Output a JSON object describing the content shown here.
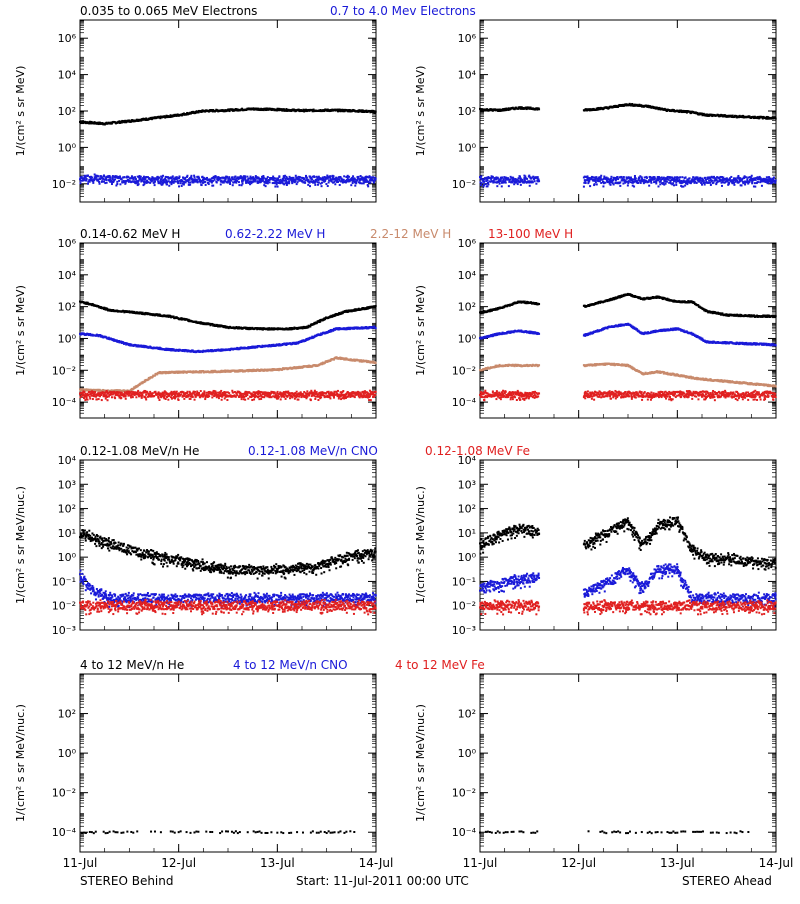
{
  "colors": {
    "black": "#000000",
    "blue": "#1a1ad8",
    "tan": "#c88a6c",
    "red": "#e02020"
  },
  "x_ticks": [
    "11-Jul",
    "12-Jul",
    "13-Jul",
    "14-Jul"
  ],
  "footer": {
    "left": "STEREO Behind",
    "center": "Start: 11-Jul-2011 00:00 UTC",
    "right": "STEREO Ahead"
  },
  "chart_data": [
    {
      "id": "electrons",
      "type": "scatter",
      "scale": "log",
      "ylabel": "1/(cm² s sr MeV)",
      "ylim_exp": [
        -3,
        7
      ],
      "tick_exps": [
        -2,
        0,
        2,
        4,
        6
      ],
      "tick_labels": [
        "10⁻²",
        "10⁰",
        "10²",
        "10⁴",
        "10⁶"
      ],
      "legend": [
        {
          "text": "0.035 to 0.065 MeV Electrons",
          "color": "black"
        },
        {
          "text": "0.7 to 4.0 Mev Electrons",
          "color": "blue"
        }
      ],
      "behind": [
        {
          "name": "0.035 to 0.065 MeV Electrons",
          "color": "black",
          "points": [
            [
              0.0,
              25
            ],
            [
              0.25,
              20
            ],
            [
              0.5,
              28
            ],
            [
              0.75,
              40
            ],
            [
              1.0,
              60
            ],
            [
              1.25,
              100
            ],
            [
              1.5,
              110
            ],
            [
              1.75,
              130
            ],
            [
              2.0,
              120
            ],
            [
              2.25,
              105
            ],
            [
              2.5,
              110
            ],
            [
              2.75,
              105
            ],
            [
              3.0,
              90
            ]
          ]
        },
        {
          "name": "0.7 to 4.0 Mev Electrons",
          "color": "blue",
          "noise": true,
          "points": [
            [
              0.0,
              0.02
            ],
            [
              0.5,
              0.017
            ],
            [
              1.0,
              0.016
            ],
            [
              1.5,
              0.017
            ],
            [
              2.0,
              0.016
            ],
            [
              2.5,
              0.017
            ],
            [
              3.0,
              0.016
            ]
          ]
        }
      ],
      "ahead": [
        {
          "name": "0.035 to 0.065 MeV Electrons",
          "color": "black",
          "points": [
            [
              0.0,
              120
            ],
            [
              0.2,
              110
            ],
            [
              0.4,
              150
            ],
            [
              0.6,
              130
            ],
            [
              0.7,
              null
            ],
            [
              1.0,
              null
            ],
            [
              1.05,
              110
            ],
            [
              1.3,
              150
            ],
            [
              1.5,
              230
            ],
            [
              1.7,
              180
            ],
            [
              1.9,
              110
            ],
            [
              2.1,
              90
            ],
            [
              2.3,
              60
            ],
            [
              2.6,
              50
            ],
            [
              3.0,
              40
            ]
          ]
        },
        {
          "name": "0.7 to 4.0 Mev Electrons",
          "color": "blue",
          "noise": true,
          "points": [
            [
              0.0,
              0.016
            ],
            [
              0.6,
              0.017
            ],
            [
              0.7,
              null
            ],
            [
              1.0,
              null
            ],
            [
              1.05,
              0.016
            ],
            [
              2.0,
              0.016
            ],
            [
              3.0,
              0.016
            ]
          ]
        }
      ]
    },
    {
      "id": "protons",
      "type": "scatter",
      "scale": "log",
      "ylabel": "1/(cm² s sr MeV)",
      "ylim_exp": [
        -5,
        6
      ],
      "tick_exps": [
        -4,
        -2,
        0,
        2,
        4,
        6
      ],
      "tick_labels": [
        "10⁻⁴",
        "10⁻²",
        "10⁰",
        "10²",
        "10⁴",
        "10⁶"
      ],
      "legend": [
        {
          "text": "0.14-0.62 MeV H",
          "color": "black"
        },
        {
          "text": "0.62-2.22 MeV H",
          "color": "blue"
        },
        {
          "text": "2.2-12 MeV H",
          "color": "tan"
        },
        {
          "text": "13-100 MeV H",
          "color": "red"
        }
      ],
      "behind": [
        {
          "name": "0.14-0.62 MeV H",
          "color": "black",
          "points": [
            [
              0.0,
              200
            ],
            [
              0.1,
              150
            ],
            [
              0.3,
              60
            ],
            [
              0.6,
              40
            ],
            [
              0.9,
              25
            ],
            [
              1.2,
              10
            ],
            [
              1.5,
              5
            ],
            [
              1.8,
              4
            ],
            [
              2.1,
              4
            ],
            [
              2.3,
              5
            ],
            [
              2.5,
              20
            ],
            [
              2.7,
              50
            ],
            [
              3.0,
              100
            ]
          ]
        },
        {
          "name": "0.62-2.22 MeV H",
          "color": "blue",
          "points": [
            [
              0.0,
              2
            ],
            [
              0.2,
              1.5
            ],
            [
              0.5,
              0.4
            ],
            [
              0.9,
              0.2
            ],
            [
              1.2,
              0.15
            ],
            [
              1.5,
              0.2
            ],
            [
              1.8,
              0.3
            ],
            [
              2.2,
              0.5
            ],
            [
              2.4,
              1.5
            ],
            [
              2.6,
              4
            ],
            [
              3.0,
              5
            ]
          ]
        },
        {
          "name": "2.2-12 MeV H",
          "color": "tan",
          "points": [
            [
              0.0,
              0.0006
            ],
            [
              0.3,
              0.0005
            ],
            [
              0.5,
              0.0005
            ],
            [
              0.65,
              0.002
            ],
            [
              0.8,
              0.007
            ],
            [
              1.2,
              0.008
            ],
            [
              1.6,
              0.009
            ],
            [
              2.0,
              0.011
            ],
            [
              2.4,
              0.02
            ],
            [
              2.6,
              0.06
            ],
            [
              3.0,
              0.03
            ]
          ]
        },
        {
          "name": "13-100 MeV H",
          "color": "red",
          "noise": true,
          "points": [
            [
              0.0,
              0.0003
            ],
            [
              1.5,
              0.0003
            ],
            [
              3.0,
              0.0003
            ]
          ]
        }
      ],
      "ahead": [
        {
          "name": "0.14-0.62 MeV H",
          "color": "black",
          "points": [
            [
              0.0,
              40
            ],
            [
              0.2,
              80
            ],
            [
              0.4,
              200
            ],
            [
              0.6,
              150
            ],
            [
              0.7,
              null
            ],
            [
              1.0,
              null
            ],
            [
              1.05,
              100
            ],
            [
              1.3,
              250
            ],
            [
              1.5,
              600
            ],
            [
              1.65,
              300
            ],
            [
              1.8,
              400
            ],
            [
              2.0,
              200
            ],
            [
              2.15,
              200
            ],
            [
              2.3,
              50
            ],
            [
              2.5,
              30
            ],
            [
              2.8,
              25
            ],
            [
              3.0,
              25
            ]
          ]
        },
        {
          "name": "0.62-2.22 MeV H",
          "color": "blue",
          "points": [
            [
              0.0,
              1
            ],
            [
              0.2,
              2
            ],
            [
              0.4,
              3
            ],
            [
              0.6,
              2
            ],
            [
              0.7,
              null
            ],
            [
              1.0,
              null
            ],
            [
              1.05,
              1.5
            ],
            [
              1.3,
              5
            ],
            [
              1.5,
              8
            ],
            [
              1.65,
              2
            ],
            [
              1.8,
              3
            ],
            [
              2.0,
              4
            ],
            [
              2.15,
              2
            ],
            [
              2.3,
              0.6
            ],
            [
              2.6,
              0.5
            ],
            [
              3.0,
              0.4
            ]
          ]
        },
        {
          "name": "2.2-12 MeV H",
          "color": "tan",
          "points": [
            [
              0.0,
              0.01
            ],
            [
              0.2,
              0.02
            ],
            [
              0.4,
              0.02
            ],
            [
              0.6,
              0.02
            ],
            [
              0.7,
              null
            ],
            [
              1.0,
              null
            ],
            [
              1.05,
              0.02
            ],
            [
              1.3,
              0.025
            ],
            [
              1.5,
              0.02
            ],
            [
              1.65,
              0.006
            ],
            [
              1.8,
              0.008
            ],
            [
              2.0,
              0.005
            ],
            [
              2.2,
              0.003
            ],
            [
              2.5,
              0.002
            ],
            [
              3.0,
              0.001
            ]
          ]
        },
        {
          "name": "13-100 MeV H",
          "color": "red",
          "noise": true,
          "points": [
            [
              0.0,
              0.0003
            ],
            [
              0.6,
              0.0003
            ],
            [
              0.7,
              null
            ],
            [
              1.0,
              null
            ],
            [
              1.05,
              0.0003
            ],
            [
              3.0,
              0.0003
            ]
          ]
        }
      ]
    },
    {
      "id": "low-energy-ions",
      "type": "scatter",
      "scale": "log",
      "ylabel": "1/(cm² s sr MeV/nuc.)",
      "ylim_exp": [
        -3,
        4
      ],
      "tick_exps": [
        -3,
        -2,
        -1,
        0,
        1,
        2,
        3,
        4
      ],
      "tick_labels": [
        "10⁻³",
        "10⁻²",
        "10⁻¹",
        "10⁰",
        "10¹",
        "10²",
        "10³",
        "10⁴"
      ],
      "legend": [
        {
          "text": "0.12-1.08 MeV/n He",
          "color": "black"
        },
        {
          "text": "0.12-1.08 MeV/n CNO",
          "color": "blue"
        },
        {
          "text": "0.12-1.08 MeV Fe",
          "color": "red"
        }
      ],
      "behind": [
        {
          "name": "0.12-1.08 MeV/n He",
          "color": "black",
          "noise": true,
          "points": [
            [
              0.0,
              10
            ],
            [
              0.2,
              5
            ],
            [
              0.5,
              2
            ],
            [
              0.8,
              1
            ],
            [
              1.2,
              0.5
            ],
            [
              1.5,
              0.3
            ],
            [
              1.8,
              0.3
            ],
            [
              2.1,
              0.3
            ],
            [
              2.4,
              0.4
            ],
            [
              2.6,
              0.8
            ],
            [
              2.8,
              1.2
            ],
            [
              3.0,
              1.5
            ]
          ]
        },
        {
          "name": "0.12-1.08 MeV/n CNO",
          "color": "blue",
          "noise": true,
          "points": [
            [
              0.0,
              0.2
            ],
            [
              0.1,
              0.05
            ],
            [
              0.3,
              0.02
            ],
            [
              3.0,
              0.02
            ]
          ]
        },
        {
          "name": "0.12-1.08 MeV Fe",
          "color": "red",
          "noise": true,
          "points": [
            [
              0.0,
              0.01
            ],
            [
              3.0,
              0.01
            ]
          ]
        }
      ],
      "ahead": [
        {
          "name": "0.12-1.08 MeV/n He",
          "color": "black",
          "noise": true,
          "points": [
            [
              0.0,
              3
            ],
            [
              0.2,
              8
            ],
            [
              0.4,
              15
            ],
            [
              0.6,
              10
            ],
            [
              0.7,
              null
            ],
            [
              1.0,
              null
            ],
            [
              1.05,
              3
            ],
            [
              1.3,
              10
            ],
            [
              1.5,
              30
            ],
            [
              1.65,
              3
            ],
            [
              1.8,
              20
            ],
            [
              2.0,
              30
            ],
            [
              2.15,
              2
            ],
            [
              2.3,
              1
            ],
            [
              2.6,
              0.8
            ],
            [
              3.0,
              0.5
            ]
          ]
        },
        {
          "name": "0.12-1.08 MeV/n CNO",
          "color": "blue",
          "noise": true,
          "points": [
            [
              0.0,
              0.05
            ],
            [
              0.3,
              0.1
            ],
            [
              0.6,
              0.15
            ],
            [
              0.7,
              null
            ],
            [
              1.0,
              null
            ],
            [
              1.05,
              0.03
            ],
            [
              1.3,
              0.1
            ],
            [
              1.5,
              0.3
            ],
            [
              1.65,
              0.05
            ],
            [
              1.8,
              0.3
            ],
            [
              2.0,
              0.3
            ],
            [
              2.15,
              0.02
            ],
            [
              3.0,
              0.02
            ]
          ]
        },
        {
          "name": "0.12-1.08 MeV Fe",
          "color": "red",
          "noise": true,
          "points": [
            [
              0.0,
              0.01
            ],
            [
              0.6,
              0.01
            ],
            [
              0.7,
              null
            ],
            [
              1.0,
              null
            ],
            [
              1.05,
              0.01
            ],
            [
              3.0,
              0.01
            ]
          ]
        }
      ]
    },
    {
      "id": "high-energy-ions",
      "type": "scatter",
      "scale": "log",
      "ylabel": "1/(cm² s sr MeV/nuc.)",
      "ylim_exp": [
        -5,
        4
      ],
      "tick_exps": [
        -4,
        -2,
        0,
        2
      ],
      "tick_labels": [
        "10⁻⁴",
        "10⁻²",
        "10⁰",
        "10²"
      ],
      "legend": [
        {
          "text": "4 to 12 MeV/n He",
          "color": "black"
        },
        {
          "text": "4 to 12 MeV/n CNO",
          "color": "blue"
        },
        {
          "text": "4 to 12 MeV Fe",
          "color": "red"
        }
      ],
      "behind": [
        {
          "name": "4 to 12 MeV/n He",
          "color": "black",
          "sparse": true,
          "points": [
            [
              0.0,
              0.0001
            ],
            [
              2.8,
              0.0001
            ]
          ]
        }
      ],
      "ahead": [
        {
          "name": "4 to 12 MeV/n He",
          "color": "black",
          "sparse": true,
          "points": [
            [
              0.0,
              0.0001
            ],
            [
              0.6,
              0.0001
            ],
            [
              0.7,
              null
            ],
            [
              1.0,
              null
            ],
            [
              1.05,
              0.0001
            ],
            [
              2.8,
              0.0001
            ]
          ]
        }
      ]
    }
  ]
}
